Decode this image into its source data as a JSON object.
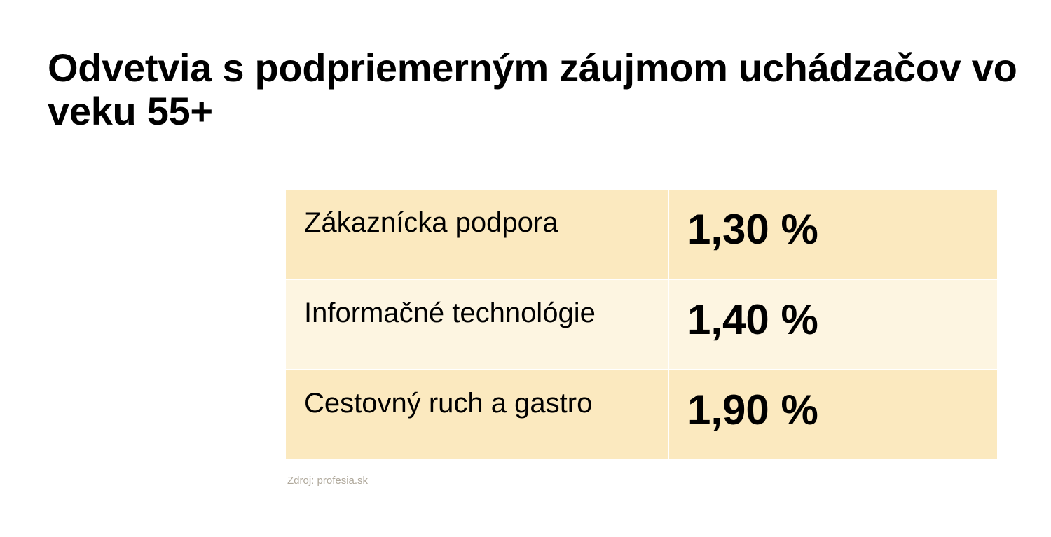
{
  "title": "Odvetvia s podpriemerným záujmom uchádzačov vo veku 55+",
  "source": "Zdroj: profesia.sk",
  "colors": {
    "row_odd": "#fbe9bf",
    "row_even": "#fdf5e1",
    "source_text": "#b0a99c"
  },
  "chart_data": {
    "type": "table",
    "title": "Odvetvia s podpriemerným záujmom uchádzačov vo veku 55+",
    "rows": [
      {
        "category": "Zákaznícka podpora",
        "value": 1.3,
        "label": "1,30 %"
      },
      {
        "category": "Informačné technológie",
        "value": 1.4,
        "label": "1,40 %"
      },
      {
        "category": "Cestovný ruch a gastro",
        "value": 1.9,
        "label": "1,90 %"
      }
    ],
    "source": "Zdroj: profesia.sk"
  }
}
